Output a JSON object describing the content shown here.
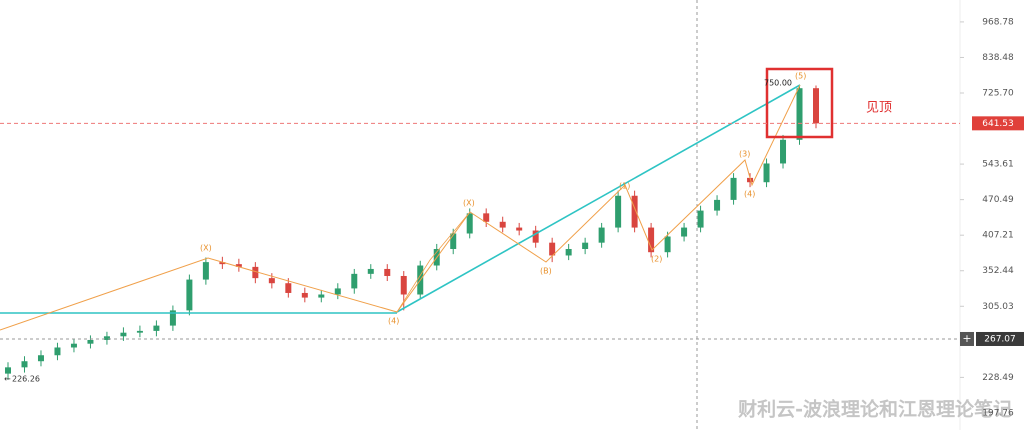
{
  "chart_data": {
    "type": "candlestick",
    "open": [
      232,
      238,
      244,
      250,
      258,
      262,
      266,
      270,
      274,
      276,
      282,
      300,
      340,
      365,
      362,
      358,
      342,
      335,
      322,
      316,
      320,
      328,
      348,
      355,
      345,
      320,
      360,
      385,
      410,
      445,
      430,
      420,
      415,
      395,
      375,
      385,
      395,
      420,
      478,
      420,
      380,
      405,
      420,
      450,
      470,
      514,
      505,
      545,
      600,
      740
    ],
    "high": [
      243,
      249,
      255,
      263,
      267,
      271,
      275,
      280,
      282,
      288,
      306,
      347,
      372,
      373,
      370,
      365,
      349,
      342,
      329,
      326,
      335,
      355,
      362,
      362,
      352,
      367,
      393,
      418,
      454,
      454,
      439,
      428,
      423,
      403,
      393,
      403,
      428,
      488,
      488,
      428,
      413,
      428,
      459,
      479,
      524,
      524,
      556,
      612,
      750,
      748
    ],
    "low": [
      226.26,
      233,
      239,
      245,
      253,
      257,
      261,
      265,
      269,
      270,
      276,
      294,
      333,
      355,
      351,
      335,
      328,
      316,
      310,
      310,
      314,
      321,
      341,
      338,
      300,
      314,
      353,
      377,
      402,
      421,
      412,
      407,
      387,
      365,
      368,
      377,
      387,
      412,
      412,
      372,
      372,
      397,
      412,
      441,
      461,
      495,
      495,
      534,
      588,
      629
    ],
    "close": [
      238,
      244,
      250,
      258,
      262,
      266,
      270,
      274,
      276,
      282,
      300,
      340,
      365,
      362,
      358,
      342,
      335,
      322,
      316,
      320,
      328,
      348,
      355,
      345,
      320,
      360,
      385,
      410,
      445,
      430,
      420,
      415,
      395,
      375,
      385,
      395,
      420,
      478,
      420,
      380,
      405,
      420,
      450,
      470,
      514,
      505,
      545,
      600,
      740,
      641.53
    ],
    "up_color": "#2f9e6e",
    "down_color": "#d9453f",
    "log_scale": true,
    "ylim": [
      184.5,
      1059
    ],
    "yticks": [
      {
        "value": 968.78,
        "label": "968.78"
      },
      {
        "value": 838.48,
        "label": "838.48"
      },
      {
        "value": 725.7,
        "label": "725.70"
      },
      {
        "value": 543.61,
        "label": "543.61"
      },
      {
        "value": 470.49,
        "label": "470.49"
      },
      {
        "value": 407.21,
        "label": "407.21"
      },
      {
        "value": 352.44,
        "label": "352.44"
      },
      {
        "value": 305.03,
        "label": "305.03"
      },
      {
        "value": 228.49,
        "label": "228.49"
      },
      {
        "value": 197.76,
        "label": "197.76"
      }
    ],
    "current_price": {
      "value": 641.53,
      "label": "641.53"
    },
    "crosshair_price": {
      "value": 267.07,
      "label": "267.07"
    },
    "low_marker": {
      "value": 226.26,
      "label": "226.26"
    },
    "peak_marker": {
      "value": 750,
      "label": "750.00"
    },
    "annotation": "见顶",
    "wave_labels": [
      "(X)",
      "(4)",
      "(X)",
      "(B)",
      "(1)",
      "(2)",
      "(3)",
      "(4)",
      "(5)"
    ],
    "watermark": "财利云-波浪理论和江恩理论笔记"
  }
}
